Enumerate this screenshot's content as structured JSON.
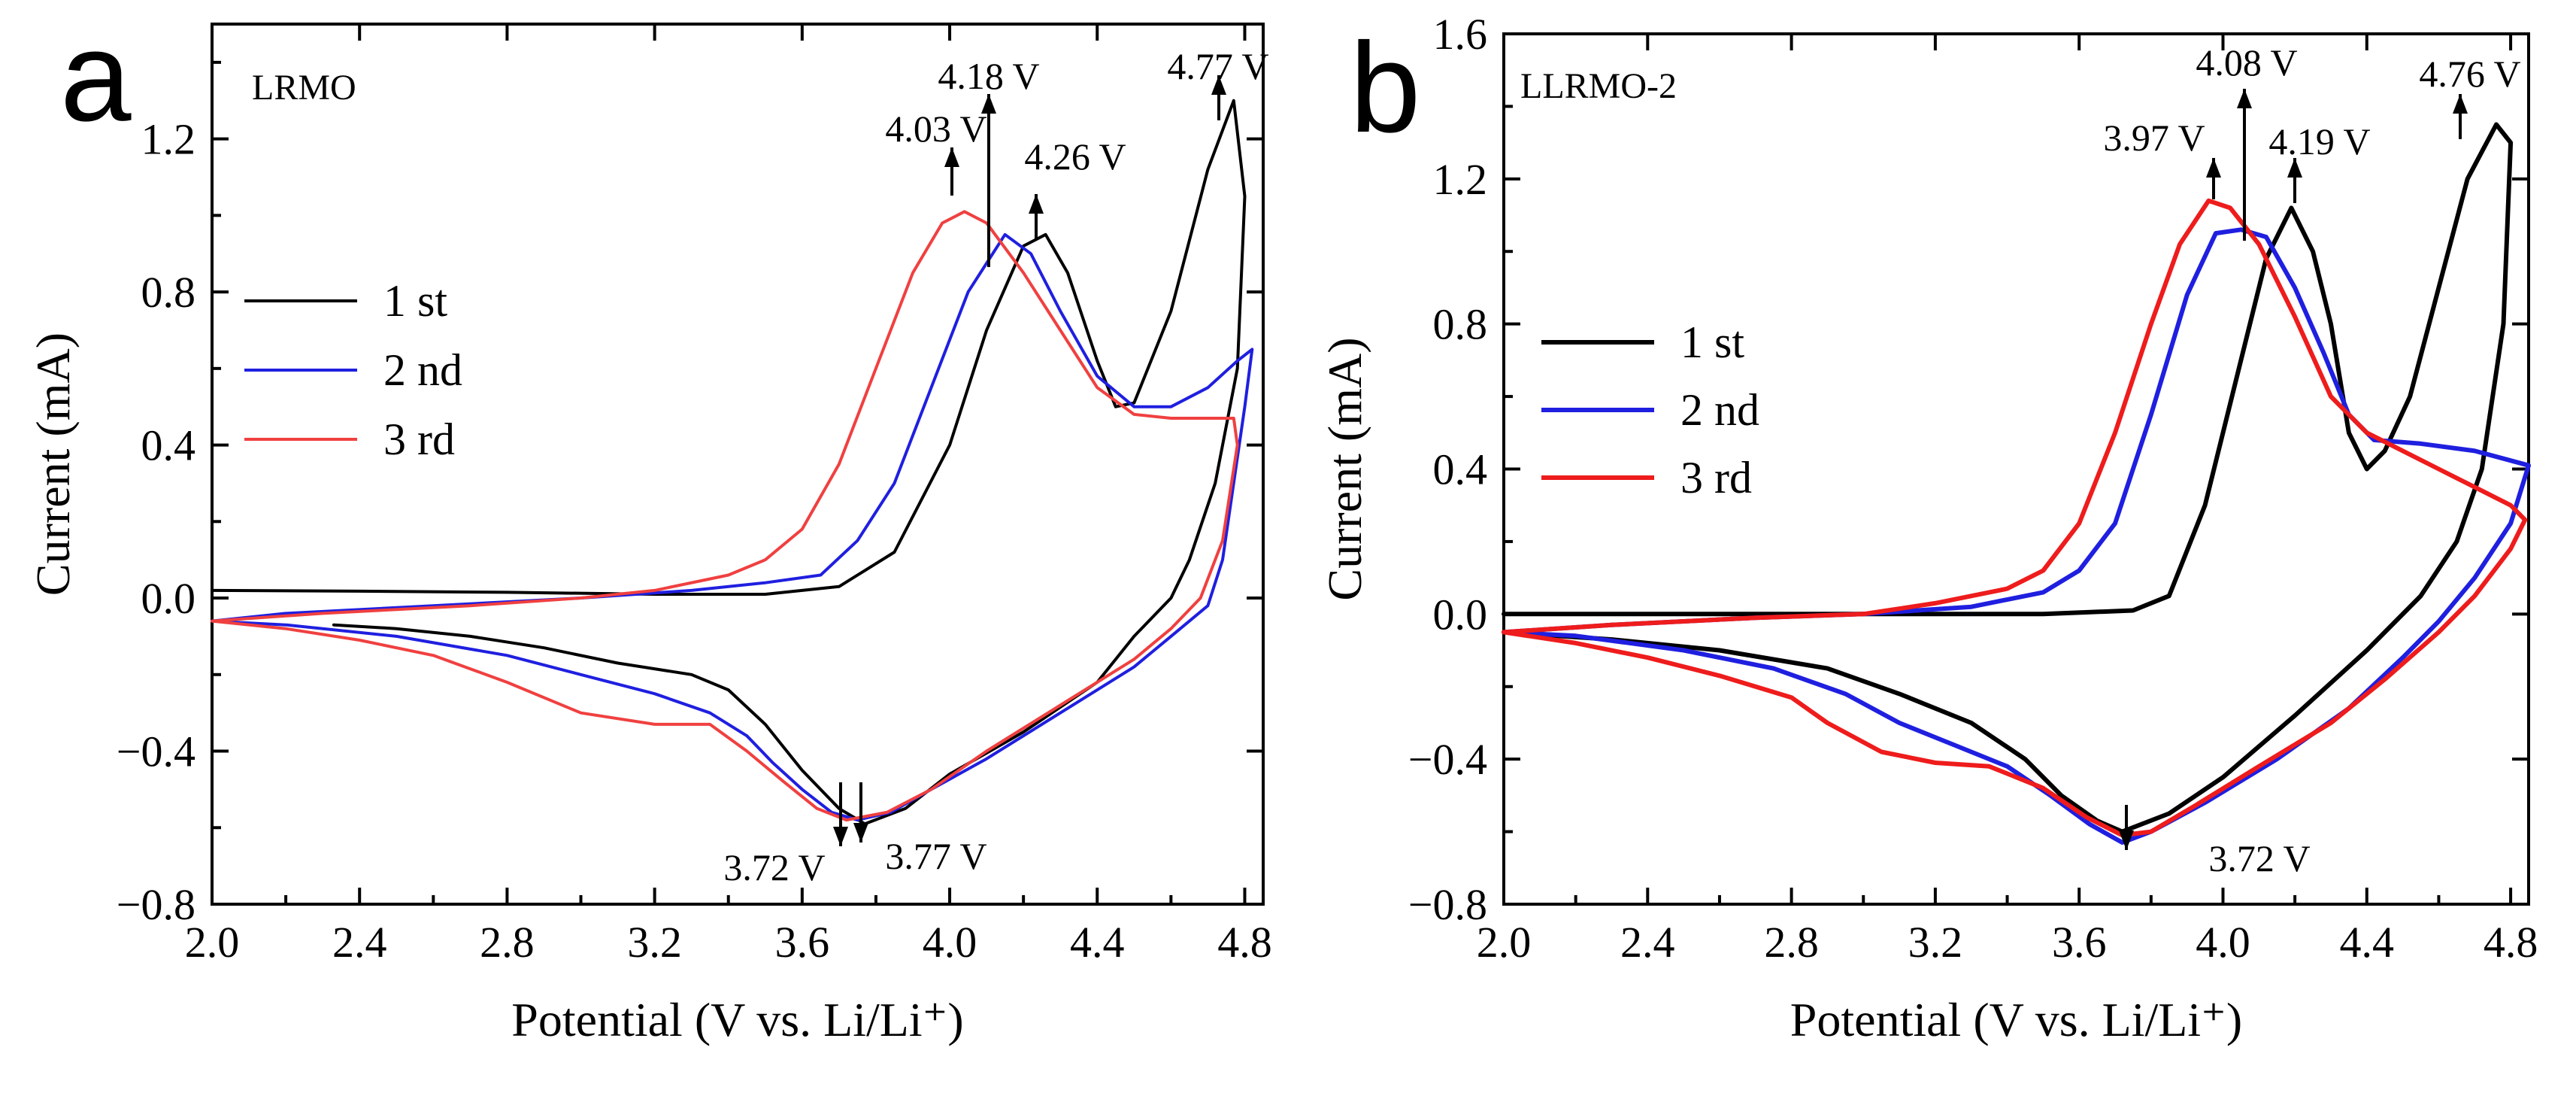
{
  "chart_data": [
    {
      "type": "line",
      "panel_label": "a",
      "title": "LRMO",
      "xlabel": "Potential (V vs. Li/Li⁺)",
      "ylabel": "Current (mA)",
      "xlim": [
        2.0,
        4.85
      ],
      "ylim": [
        -0.8,
        1.5
      ],
      "xticks": [
        "2.0",
        "2.4",
        "2.8",
        "3.2",
        "3.6",
        "4.0",
        "4.4",
        "4.8"
      ],
      "yticks": [
        "−0.8",
        "−0.4",
        "0.0",
        "0.4",
        "0.8",
        "1.2"
      ],
      "legend_position": "center-left",
      "series": [
        {
          "name": "1 st",
          "color": "#000000",
          "points": [
            [
              2.0,
              0.02
            ],
            [
              2.4,
              0.018
            ],
            [
              2.8,
              0.015
            ],
            [
              3.2,
              0.01
            ],
            [
              3.5,
              0.01
            ],
            [
              3.7,
              0.03
            ],
            [
              3.85,
              0.12
            ],
            [
              4.0,
              0.4
            ],
            [
              4.1,
              0.7
            ],
            [
              4.2,
              0.92
            ],
            [
              4.26,
              0.95
            ],
            [
              4.32,
              0.85
            ],
            [
              4.4,
              0.62
            ],
            [
              4.45,
              0.5
            ],
            [
              4.5,
              0.51
            ],
            [
              4.6,
              0.75
            ],
            [
              4.7,
              1.12
            ],
            [
              4.77,
              1.3
            ],
            [
              4.8,
              1.05
            ],
            [
              4.78,
              0.6
            ],
            [
              4.72,
              0.3
            ],
            [
              4.65,
              0.1
            ],
            [
              4.6,
              0.0
            ],
            [
              4.5,
              -0.1
            ],
            [
              4.4,
              -0.22
            ],
            [
              4.2,
              -0.35
            ],
            [
              4.0,
              -0.46
            ],
            [
              3.88,
              -0.55
            ],
            [
              3.77,
              -0.59
            ],
            [
              3.7,
              -0.55
            ],
            [
              3.6,
              -0.45
            ],
            [
              3.5,
              -0.33
            ],
            [
              3.4,
              -0.24
            ],
            [
              3.3,
              -0.2
            ],
            [
              3.1,
              -0.17
            ],
            [
              2.9,
              -0.13
            ],
            [
              2.7,
              -0.1
            ],
            [
              2.5,
              -0.08
            ],
            [
              2.33,
              -0.07
            ]
          ]
        },
        {
          "name": "2 nd",
          "color": "#1f1fe0",
          "points": [
            [
              2.0,
              -0.06
            ],
            [
              2.2,
              -0.04
            ],
            [
              2.6,
              -0.02
            ],
            [
              3.0,
              0.0
            ],
            [
              3.3,
              0.02
            ],
            [
              3.5,
              0.04
            ],
            [
              3.65,
              0.06
            ],
            [
              3.75,
              0.15
            ],
            [
              3.85,
              0.3
            ],
            [
              3.95,
              0.55
            ],
            [
              4.05,
              0.8
            ],
            [
              4.15,
              0.95
            ],
            [
              4.22,
              0.9
            ],
            [
              4.3,
              0.75
            ],
            [
              4.4,
              0.58
            ],
            [
              4.5,
              0.5
            ],
            [
              4.6,
              0.5
            ],
            [
              4.7,
              0.55
            ],
            [
              4.78,
              0.62
            ],
            [
              4.82,
              0.65
            ],
            [
              4.8,
              0.5
            ],
            [
              4.74,
              0.1
            ],
            [
              4.7,
              -0.02
            ],
            [
              4.6,
              -0.1
            ],
            [
              4.5,
              -0.18
            ],
            [
              4.3,
              -0.3
            ],
            [
              4.1,
              -0.42
            ],
            [
              3.95,
              -0.5
            ],
            [
              3.84,
              -0.56
            ],
            [
              3.75,
              -0.58
            ],
            [
              3.68,
              -0.56
            ],
            [
              3.6,
              -0.5
            ],
            [
              3.52,
              -0.43
            ],
            [
              3.45,
              -0.36
            ],
            [
              3.35,
              -0.3
            ],
            [
              3.2,
              -0.25
            ],
            [
              3.0,
              -0.2
            ],
            [
              2.8,
              -0.15
            ],
            [
              2.5,
              -0.1
            ],
            [
              2.2,
              -0.07
            ],
            [
              2.0,
              -0.06
            ]
          ]
        },
        {
          "name": "3 rd",
          "color": "#f04040",
          "points": [
            [
              2.0,
              -0.06
            ],
            [
              2.3,
              -0.04
            ],
            [
              2.7,
              -0.02
            ],
            [
              3.0,
              0.0
            ],
            [
              3.2,
              0.02
            ],
            [
              3.4,
              0.06
            ],
            [
              3.5,
              0.1
            ],
            [
              3.6,
              0.18
            ],
            [
              3.7,
              0.35
            ],
            [
              3.8,
              0.6
            ],
            [
              3.9,
              0.85
            ],
            [
              3.98,
              0.98
            ],
            [
              4.04,
              1.01
            ],
            [
              4.1,
              0.98
            ],
            [
              4.2,
              0.85
            ],
            [
              4.3,
              0.7
            ],
            [
              4.4,
              0.55
            ],
            [
              4.5,
              0.48
            ],
            [
              4.6,
              0.47
            ],
            [
              4.7,
              0.47
            ],
            [
              4.77,
              0.47
            ],
            [
              4.78,
              0.4
            ],
            [
              4.74,
              0.15
            ],
            [
              4.68,
              0.0
            ],
            [
              4.6,
              -0.08
            ],
            [
              4.5,
              -0.16
            ],
            [
              4.3,
              -0.28
            ],
            [
              4.1,
              -0.4
            ],
            [
              3.95,
              -0.5
            ],
            [
              3.83,
              -0.56
            ],
            [
              3.72,
              -0.58
            ],
            [
              3.64,
              -0.55
            ],
            [
              3.55,
              -0.48
            ],
            [
              3.45,
              -0.4
            ],
            [
              3.35,
              -0.33
            ],
            [
              3.2,
              -0.33
            ],
            [
              3.0,
              -0.3
            ],
            [
              2.8,
              -0.22
            ],
            [
              2.6,
              -0.15
            ],
            [
              2.4,
              -0.11
            ],
            [
              2.2,
              -0.08
            ],
            [
              2.0,
              -0.06
            ]
          ]
        }
      ],
      "annotations": [
        {
          "text": "4.77 V",
          "x": 4.77,
          "y": 1.3,
          "direction": "up"
        },
        {
          "text": "4.18 V",
          "x": 4.18,
          "y": 0.95,
          "direction": "up"
        },
        {
          "text": "4.03 V",
          "x": 4.03,
          "y": 1.01,
          "direction": "up"
        },
        {
          "text": "4.26 V",
          "x": 4.26,
          "y": 0.95,
          "direction": "up"
        },
        {
          "text": "3.72 V",
          "x": 3.72,
          "y": -0.58,
          "direction": "down"
        },
        {
          "text": "3.77 V",
          "x": 3.77,
          "y": -0.59,
          "direction": "down"
        }
      ]
    },
    {
      "type": "line",
      "panel_label": "b",
      "title": "LLRMO-2",
      "xlabel": "Potential (V vs. Li/Li⁺)",
      "ylabel": "Current (mA)",
      "xlim": [
        2.0,
        4.85
      ],
      "ylim": [
        -0.8,
        1.6
      ],
      "xticks": [
        "2.0",
        "2.4",
        "2.8",
        "3.2",
        "3.6",
        "4.0",
        "4.4",
        "4.8"
      ],
      "yticks": [
        "−0.8",
        "−0.4",
        "0.0",
        "0.4",
        "0.8",
        "1.2",
        "1.6"
      ],
      "legend_position": "center-left",
      "series": [
        {
          "name": "1 st",
          "color": "#000000",
          "points": [
            [
              2.0,
              0.0
            ],
            [
              2.5,
              0.0
            ],
            [
              3.0,
              0.0
            ],
            [
              3.5,
              0.0
            ],
            [
              3.75,
              0.01
            ],
            [
              3.85,
              0.05
            ],
            [
              3.95,
              0.3
            ],
            [
              4.05,
              0.7
            ],
            [
              4.12,
              0.98
            ],
            [
              4.19,
              1.12
            ],
            [
              4.25,
              1.0
            ],
            [
              4.3,
              0.8
            ],
            [
              4.35,
              0.5
            ],
            [
              4.4,
              0.4
            ],
            [
              4.45,
              0.45
            ],
            [
              4.52,
              0.6
            ],
            [
              4.6,
              0.9
            ],
            [
              4.68,
              1.2
            ],
            [
              4.76,
              1.35
            ],
            [
              4.8,
              1.3
            ],
            [
              4.78,
              0.8
            ],
            [
              4.72,
              0.4
            ],
            [
              4.65,
              0.2
            ],
            [
              4.55,
              0.05
            ],
            [
              4.4,
              -0.1
            ],
            [
              4.2,
              -0.28
            ],
            [
              4.0,
              -0.45
            ],
            [
              3.85,
              -0.55
            ],
            [
              3.72,
              -0.6
            ],
            [
              3.65,
              -0.57
            ],
            [
              3.55,
              -0.5
            ],
            [
              3.45,
              -0.4
            ],
            [
              3.3,
              -0.3
            ],
            [
              3.1,
              -0.22
            ],
            [
              2.9,
              -0.15
            ],
            [
              2.6,
              -0.1
            ],
            [
              2.3,
              -0.07
            ],
            [
              2.0,
              -0.05
            ]
          ]
        },
        {
          "name": "2 nd",
          "color": "#1f1fe0",
          "points": [
            [
              2.0,
              -0.05
            ],
            [
              2.3,
              -0.03
            ],
            [
              2.7,
              -0.01
            ],
            [
              3.0,
              0.0
            ],
            [
              3.3,
              0.02
            ],
            [
              3.5,
              0.06
            ],
            [
              3.6,
              0.12
            ],
            [
              3.7,
              0.25
            ],
            [
              3.8,
              0.55
            ],
            [
              3.9,
              0.88
            ],
            [
              3.98,
              1.05
            ],
            [
              4.05,
              1.06
            ],
            [
              4.12,
              1.04
            ],
            [
              4.2,
              0.9
            ],
            [
              4.28,
              0.72
            ],
            [
              4.35,
              0.55
            ],
            [
              4.42,
              0.48
            ],
            [
              4.55,
              0.47
            ],
            [
              4.7,
              0.45
            ],
            [
              4.85,
              0.41
            ],
            [
              4.8,
              0.25
            ],
            [
              4.7,
              0.1
            ],
            [
              4.6,
              -0.02
            ],
            [
              4.5,
              -0.12
            ],
            [
              4.35,
              -0.26
            ],
            [
              4.15,
              -0.4
            ],
            [
              3.95,
              -0.52
            ],
            [
              3.8,
              -0.6
            ],
            [
              3.72,
              -0.63
            ],
            [
              3.63,
              -0.58
            ],
            [
              3.52,
              -0.5
            ],
            [
              3.4,
              -0.42
            ],
            [
              3.25,
              -0.36
            ],
            [
              3.1,
              -0.3
            ],
            [
              2.95,
              -0.22
            ],
            [
              2.75,
              -0.15
            ],
            [
              2.5,
              -0.1
            ],
            [
              2.2,
              -0.06
            ],
            [
              2.0,
              -0.05
            ]
          ]
        },
        {
          "name": "3 rd",
          "color": "#ee1c1c",
          "points": [
            [
              2.0,
              -0.05
            ],
            [
              2.3,
              -0.03
            ],
            [
              2.7,
              -0.01
            ],
            [
              3.0,
              0.0
            ],
            [
              3.2,
              0.03
            ],
            [
              3.4,
              0.07
            ],
            [
              3.5,
              0.12
            ],
            [
              3.6,
              0.25
            ],
            [
              3.7,
              0.5
            ],
            [
              3.8,
              0.8
            ],
            [
              3.88,
              1.02
            ],
            [
              3.96,
              1.14
            ],
            [
              4.02,
              1.12
            ],
            [
              4.1,
              1.02
            ],
            [
              4.2,
              0.82
            ],
            [
              4.3,
              0.6
            ],
            [
              4.4,
              0.5
            ],
            [
              4.5,
              0.45
            ],
            [
              4.6,
              0.4
            ],
            [
              4.7,
              0.35
            ],
            [
              4.8,
              0.3
            ],
            [
              4.84,
              0.26
            ],
            [
              4.8,
              0.18
            ],
            [
              4.7,
              0.05
            ],
            [
              4.6,
              -0.05
            ],
            [
              4.45,
              -0.18
            ],
            [
              4.3,
              -0.3
            ],
            [
              4.1,
              -0.42
            ],
            [
              3.92,
              -0.53
            ],
            [
              3.8,
              -0.6
            ],
            [
              3.72,
              -0.61
            ],
            [
              3.62,
              -0.56
            ],
            [
              3.5,
              -0.48
            ],
            [
              3.35,
              -0.42
            ],
            [
              3.2,
              -0.41
            ],
            [
              3.05,
              -0.38
            ],
            [
              2.9,
              -0.3
            ],
            [
              2.8,
              -0.23
            ],
            [
              2.6,
              -0.17
            ],
            [
              2.4,
              -0.12
            ],
            [
              2.2,
              -0.08
            ],
            [
              2.0,
              -0.05
            ]
          ]
        }
      ],
      "annotations": [
        {
          "text": "4.76 V",
          "x": 4.76,
          "y": 1.35,
          "direction": "up"
        },
        {
          "text": "4.08 V",
          "x": 4.05,
          "y": 1.06,
          "direction": "up"
        },
        {
          "text": "3.97 V",
          "x": 3.96,
          "y": 1.14,
          "direction": "up"
        },
        {
          "text": "4.19 V",
          "x": 4.19,
          "y": 1.12,
          "direction": "up"
        },
        {
          "text": "3.72 V",
          "x": 3.72,
          "y": -0.63,
          "direction": "down"
        }
      ]
    }
  ]
}
